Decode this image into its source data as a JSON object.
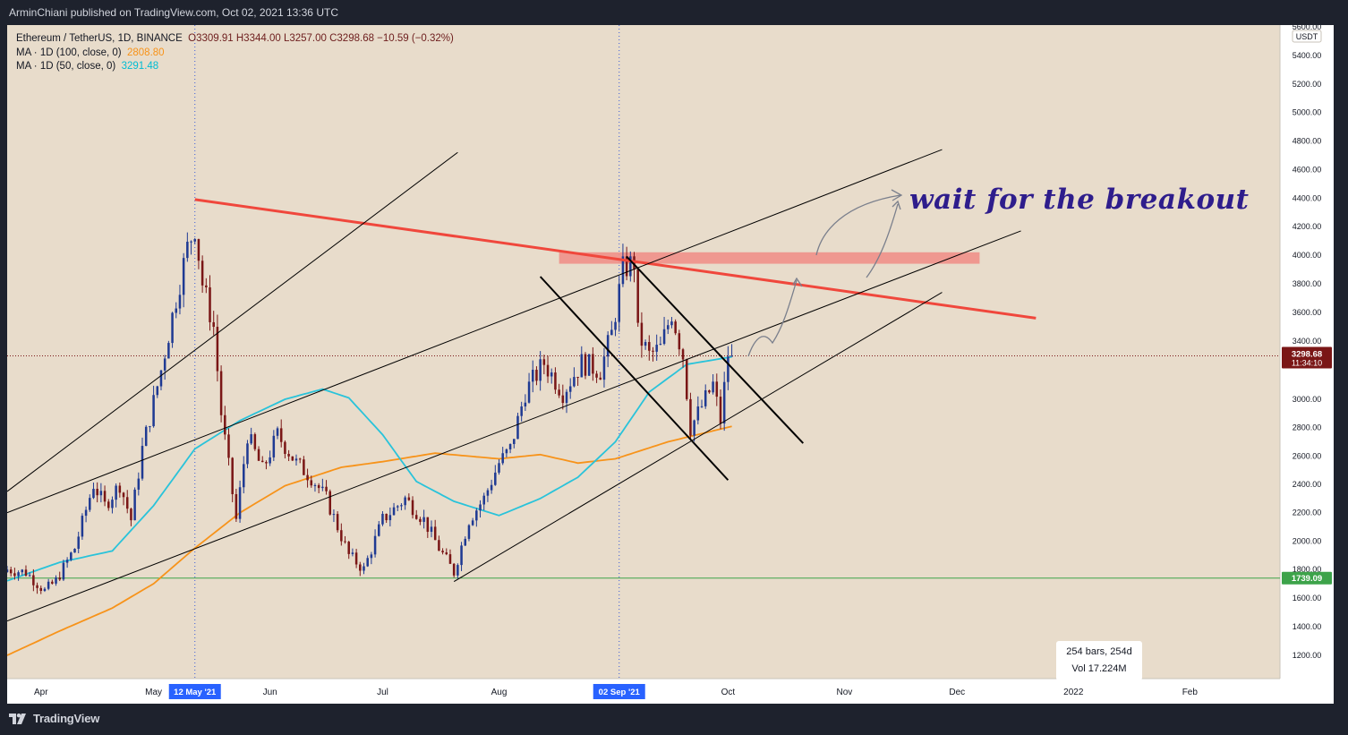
{
  "header": {
    "published_text": "ArminChiani published on TradingView.com, Oct 02, 2021 13:36 UTC"
  },
  "footer": {
    "brand": "TradingView"
  },
  "legend": {
    "symbol": "Ethereum / TetherUS, 1D, BINANCE",
    "ohlc": "O3309.91 H3344.00 L3257.00 C3298.68 −10.59 (−0.32%)",
    "ma100_label": "MA · 1D (100, close, 0)",
    "ma100_value": "2808.80",
    "ma50_label": "MA · 1D (50, close, 0)",
    "ma50_value": "3291.48"
  },
  "annotation": {
    "text": "wait for the breakout"
  },
  "infobox": {
    "bars": "254 bars, 254d",
    "vol": "Vol 17.224M"
  },
  "colors": {
    "background": "#e8dccb",
    "bull": "#1f3a93",
    "bear": "#7a1616",
    "ma50": "#29c3da",
    "ma100": "#f7931a",
    "resistance_line": "#f0473c",
    "zone": "#f0908a",
    "support_level": "#3da34a",
    "annotation": "#2e1d8c"
  },
  "chart_data": {
    "type": "candlestick",
    "title": "Ethereum / TetherUS, 1D, BINANCE",
    "ylim": [
      1100,
      5700
    ],
    "currency": "USDT",
    "y_ticks": [
      1200,
      1400,
      1600,
      1800,
      2000,
      2200,
      2400,
      2600,
      2800,
      3000,
      3400,
      3600,
      3800,
      4000,
      4200,
      4400,
      4600,
      4800,
      5000,
      5200,
      5400,
      5600
    ],
    "y_tick_labels": [
      "1200.00",
      "1400.00",
      "1600.00",
      "1800.00",
      "2000.00",
      "2200.00",
      "2400.00",
      "2600.00",
      "2800.00",
      "3000.00",
      "3400.00",
      "3600.00",
      "3800.00",
      "4000.00",
      "4200.00",
      "4400.00",
      "4600.00",
      "4800.00",
      "5000.00",
      "5200.00",
      "5400.00",
      "5600.00"
    ],
    "x_range": [
      "2021-03-23",
      "2022-02-25"
    ],
    "x_ticks": [
      {
        "date": "2021-04-01",
        "label": "Apr"
      },
      {
        "date": "2021-05-01",
        "label": "May"
      },
      {
        "date": "2021-06-01",
        "label": "Jun"
      },
      {
        "date": "2021-07-01",
        "label": "Jul"
      },
      {
        "date": "2021-08-01",
        "label": "Aug"
      },
      {
        "date": "2021-10-01",
        "label": "Oct"
      },
      {
        "date": "2021-11-01",
        "label": "Nov"
      },
      {
        "date": "2021-12-01",
        "label": "Dec"
      },
      {
        "date": "2022-01-01",
        "label": "2022"
      },
      {
        "date": "2022-02-01",
        "label": "Feb"
      }
    ],
    "highlight_dates": [
      {
        "date": "2021-05-12",
        "label": "12 May '21"
      },
      {
        "date": "2021-09-02",
        "label": "02 Sep '21"
      }
    ],
    "last_price": {
      "value": 3298.68,
      "label": "3298.68",
      "countdown": "11:34:10"
    },
    "support_price": {
      "value": 1739.09,
      "label": "1739.09"
    },
    "close_anchors": [
      {
        "date": "2021-03-23",
        "close": 1800
      },
      {
        "date": "2021-03-28",
        "close": 1780
      },
      {
        "date": "2021-04-02",
        "close": 1650
      },
      {
        "date": "2021-04-05",
        "close": 1720
      },
      {
        "date": "2021-04-10",
        "close": 1950
      },
      {
        "date": "2021-04-15",
        "close": 2400
      },
      {
        "date": "2021-04-18",
        "close": 2250
      },
      {
        "date": "2021-04-22",
        "close": 2400
      },
      {
        "date": "2021-04-25",
        "close": 2150
      },
      {
        "date": "2021-04-28",
        "close": 2650
      },
      {
        "date": "2021-05-03",
        "close": 3200
      },
      {
        "date": "2021-05-07",
        "close": 3700
      },
      {
        "date": "2021-05-10",
        "close": 4050
      },
      {
        "date": "2021-05-12",
        "close": 4200
      },
      {
        "date": "2021-05-14",
        "close": 3800
      },
      {
        "date": "2021-05-17",
        "close": 3500
      },
      {
        "date": "2021-05-19",
        "close": 2900
      },
      {
        "date": "2021-05-23",
        "close": 2150
      },
      {
        "date": "2021-05-26",
        "close": 2750
      },
      {
        "date": "2021-05-30",
        "close": 2500
      },
      {
        "date": "2021-06-03",
        "close": 2750
      },
      {
        "date": "2021-06-08",
        "close": 2550
      },
      {
        "date": "2021-06-12",
        "close": 2450
      },
      {
        "date": "2021-06-16",
        "close": 2300
      },
      {
        "date": "2021-06-22",
        "close": 1900
      },
      {
        "date": "2021-06-26",
        "close": 1800
      },
      {
        "date": "2021-07-01",
        "close": 2150
      },
      {
        "date": "2021-07-07",
        "close": 2300
      },
      {
        "date": "2021-07-12",
        "close": 2150
      },
      {
        "date": "2021-07-16",
        "close": 1950
      },
      {
        "date": "2021-07-20",
        "close": 1780
      },
      {
        "date": "2021-07-24",
        "close": 2150
      },
      {
        "date": "2021-07-28",
        "close": 2300
      },
      {
        "date": "2021-08-01",
        "close": 2550
      },
      {
        "date": "2021-08-04",
        "close": 2650
      },
      {
        "date": "2021-08-08",
        "close": 3050
      },
      {
        "date": "2021-08-13",
        "close": 3250
      },
      {
        "date": "2021-08-18",
        "close": 3050
      },
      {
        "date": "2021-08-23",
        "close": 3250
      },
      {
        "date": "2021-08-28",
        "close": 3200
      },
      {
        "date": "2021-08-31",
        "close": 3450
      },
      {
        "date": "2021-09-03",
        "close": 3900
      },
      {
        "date": "2021-09-06",
        "close": 3950
      },
      {
        "date": "2021-09-07",
        "close": 3450
      },
      {
        "date": "2021-09-10",
        "close": 3300
      },
      {
        "date": "2021-09-13",
        "close": 3350
      },
      {
        "date": "2021-09-16",
        "close": 3600
      },
      {
        "date": "2021-09-19",
        "close": 3300
      },
      {
        "date": "2021-09-21",
        "close": 2800
      },
      {
        "date": "2021-09-24",
        "close": 2950
      },
      {
        "date": "2021-09-27",
        "close": 3100
      },
      {
        "date": "2021-09-29",
        "close": 2850
      },
      {
        "date": "2021-10-01",
        "close": 3310
      },
      {
        "date": "2021-10-02",
        "close": 3298.68
      }
    ],
    "ma50_anchors": [
      {
        "date": "2021-03-23",
        "value": 1720
      },
      {
        "date": "2021-04-06",
        "value": 1850
      },
      {
        "date": "2021-04-20",
        "value": 1930
      },
      {
        "date": "2021-05-01",
        "value": 2250
      },
      {
        "date": "2021-05-12",
        "value": 2650
      },
      {
        "date": "2021-05-24",
        "value": 2850
      },
      {
        "date": "2021-06-05",
        "value": 3000
      },
      {
        "date": "2021-06-15",
        "value": 3070
      },
      {
        "date": "2021-06-22",
        "value": 3010
      },
      {
        "date": "2021-07-01",
        "value": 2750
      },
      {
        "date": "2021-07-10",
        "value": 2420
      },
      {
        "date": "2021-07-20",
        "value": 2280
      },
      {
        "date": "2021-08-01",
        "value": 2180
      },
      {
        "date": "2021-08-12",
        "value": 2300
      },
      {
        "date": "2021-08-22",
        "value": 2450
      },
      {
        "date": "2021-09-01",
        "value": 2700
      },
      {
        "date": "2021-09-10",
        "value": 3050
      },
      {
        "date": "2021-09-20",
        "value": 3240
      },
      {
        "date": "2021-10-02",
        "value": 3291.48
      }
    ],
    "ma100_anchors": [
      {
        "date": "2021-03-23",
        "value": 1200
      },
      {
        "date": "2021-04-06",
        "value": 1370
      },
      {
        "date": "2021-04-20",
        "value": 1530
      },
      {
        "date": "2021-05-01",
        "value": 1700
      },
      {
        "date": "2021-05-12",
        "value": 1950
      },
      {
        "date": "2021-05-24",
        "value": 2200
      },
      {
        "date": "2021-06-05",
        "value": 2390
      },
      {
        "date": "2021-06-20",
        "value": 2520
      },
      {
        "date": "2021-07-01",
        "value": 2560
      },
      {
        "date": "2021-07-15",
        "value": 2620
      },
      {
        "date": "2021-08-01",
        "value": 2580
      },
      {
        "date": "2021-08-12",
        "value": 2610
      },
      {
        "date": "2021-08-22",
        "value": 2550
      },
      {
        "date": "2021-09-01",
        "value": 2580
      },
      {
        "date": "2021-09-15",
        "value": 2700
      },
      {
        "date": "2021-10-02",
        "value": 2808.8
      }
    ],
    "trendlines": [
      {
        "name": "red-resistance",
        "from": {
          "date": "2021-05-12",
          "price": 4390
        },
        "to": {
          "date": "2021-12-22",
          "price": 3560
        }
      },
      {
        "name": "upper-channel-steep",
        "from": {
          "date": "2021-03-23",
          "price": 2350
        },
        "to": {
          "date": "2021-07-21",
          "price": 4720
        }
      },
      {
        "name": "channel-top",
        "from": {
          "date": "2021-03-23",
          "price": 2200
        },
        "to": {
          "date": "2021-11-27",
          "price": 4740
        }
      },
      {
        "name": "channel-mid",
        "from": {
          "date": "2021-03-23",
          "price": 1440
        },
        "to": {
          "date": "2021-12-18",
          "price": 4170
        }
      },
      {
        "name": "support-rising",
        "from": {
          "date": "2021-07-20",
          "price": 1715
        },
        "to": {
          "date": "2021-11-27",
          "price": 3740
        }
      },
      {
        "name": "flag-upper",
        "from": {
          "date": "2021-09-04",
          "price": 3990
        },
        "to": {
          "date": "2021-10-21",
          "price": 2690
        }
      },
      {
        "name": "flag-lower",
        "from": {
          "date": "2021-08-12",
          "price": 3850
        },
        "to": {
          "date": "2021-10-01",
          "price": 2430
        }
      }
    ],
    "resistance_zone": {
      "from": "2021-08-17",
      "to": "2021-12-07",
      "low": 3940,
      "high": 4020
    }
  }
}
